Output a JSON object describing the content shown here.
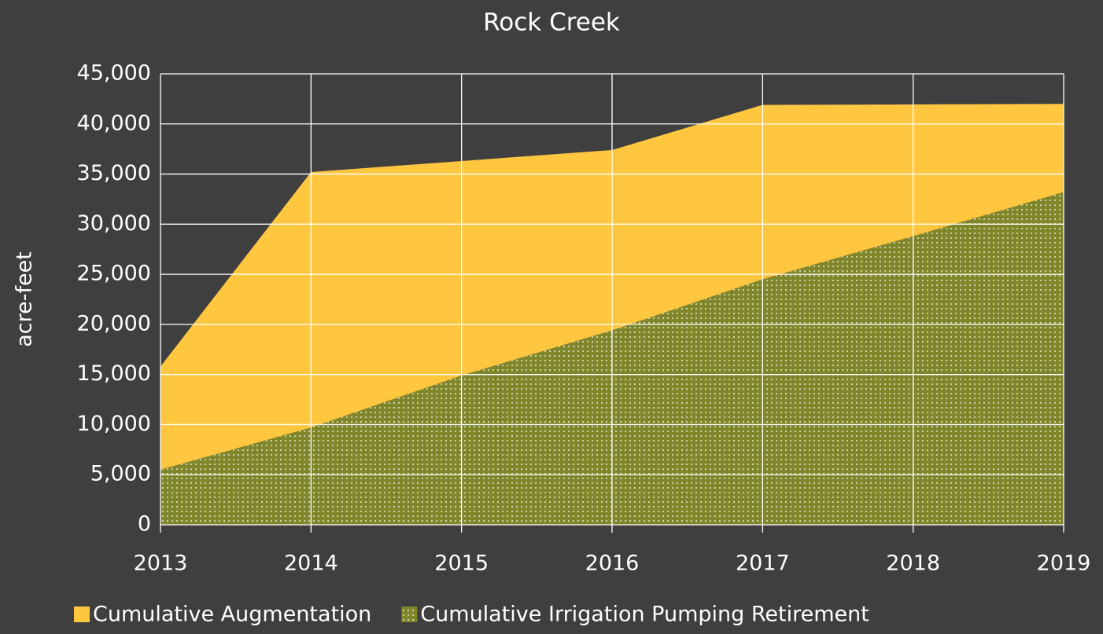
{
  "chart_data": {
    "type": "stacked_area",
    "title": "Rock Creek",
    "ylabel": "acre-feet",
    "categories": [
      "2013",
      "2014",
      "2015",
      "2016",
      "2017",
      "2018",
      "2019"
    ],
    "series": [
      {
        "name": "Cumulative Augmentation",
        "color": "#ffc640",
        "values": [
          10300,
          25500,
          21400,
          18000,
          17400,
          13150,
          8800
        ]
      },
      {
        "name": "Cumulative Irrigation Pumping Retirement",
        "color": "#80862a",
        "pattern": "dots",
        "values": [
          5500,
          9700,
          14900,
          19400,
          24500,
          28800,
          33200
        ]
      }
    ],
    "ylim": [
      0,
      45000
    ],
    "yticks": [
      0,
      {
        "value": 5000,
        "label": "5,000"
      },
      {
        "value": 10000,
        "label": "10,000"
      },
      {
        "value": 15000,
        "label": "15,000"
      },
      {
        "value": 20000,
        "label": "20,000"
      },
      {
        "value": 25000,
        "label": "25,000"
      },
      {
        "value": 30000,
        "label": "30,000"
      },
      {
        "value": 35000,
        "label": "35,000"
      },
      {
        "value": 40000,
        "label": "40,000"
      },
      {
        "value": 45000,
        "label": "45,000"
      }
    ],
    "grid": true,
    "legend": "bottom"
  }
}
